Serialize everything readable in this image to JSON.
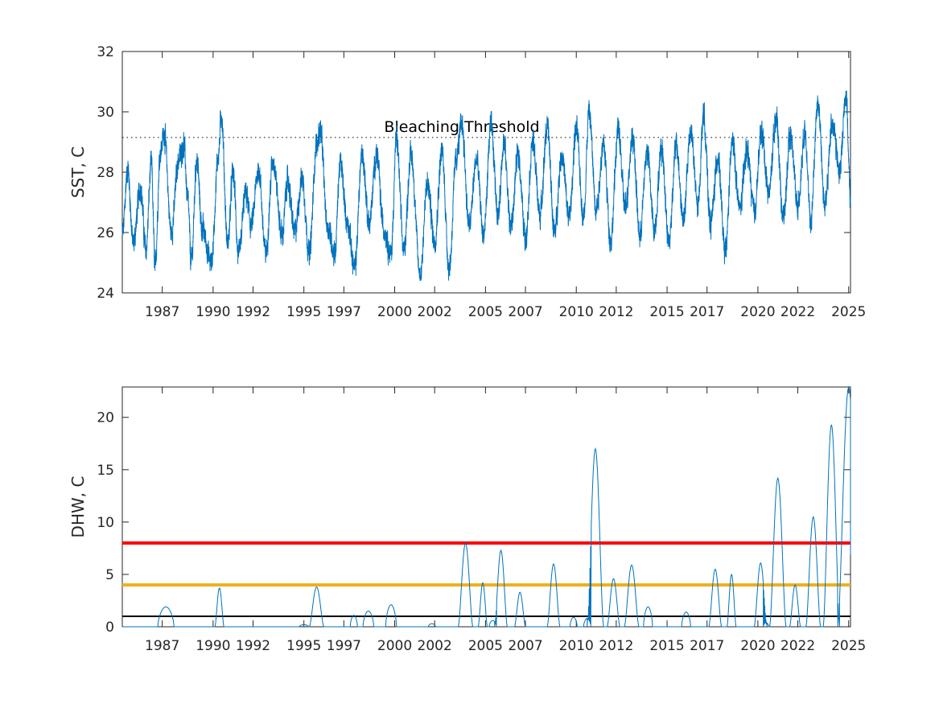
{
  "chart_data": [
    {
      "type": "line",
      "title": "",
      "xlabel": "",
      "ylabel": "SST, C",
      "ylim": [
        24,
        32
      ],
      "yticks": [
        24,
        26,
        28,
        30,
        32
      ],
      "xlim": [
        1985.0,
        2025.1
      ],
      "xticks": [
        "1987",
        "1990",
        "1992",
        "1995",
        "1997",
        "2000",
        "2002",
        "2005",
        "2007",
        "2010",
        "2012",
        "2015",
        "2017",
        "2020",
        "2022",
        "2025"
      ],
      "grid": false,
      "threshold": {
        "label": "Bleaching Threshold",
        "value": 29.15,
        "style": "dotted"
      },
      "series": [
        {
          "color": "#0072bd",
          "points": [
            [
              1985.0,
              25.9
            ],
            [
              1985.3,
              28.1
            ],
            [
              1985.6,
              25.6
            ],
            [
              1986.0,
              27.5
            ],
            [
              1986.3,
              25.4
            ],
            [
              1986.6,
              28.3
            ],
            [
              1986.8,
              24.9
            ],
            [
              1987.1,
              28.7
            ],
            [
              1987.3,
              29.3
            ],
            [
              1987.7,
              26.0
            ],
            [
              1988.1,
              28.4
            ],
            [
              1988.4,
              28.9
            ],
            [
              1988.6,
              27.1
            ],
            [
              1988.8,
              25.0
            ],
            [
              1989.1,
              28.4
            ],
            [
              1989.4,
              26.1
            ],
            [
              1989.9,
              25.0
            ],
            [
              1990.3,
              28.6
            ],
            [
              1990.45,
              29.9
            ],
            [
              1990.8,
              25.6
            ],
            [
              1991.1,
              28.0
            ],
            [
              1991.4,
              25.2
            ],
            [
              1991.8,
              27.3
            ],
            [
              1992.1,
              26.2
            ],
            [
              1992.5,
              28.1
            ],
            [
              1992.9,
              25.3
            ],
            [
              1993.3,
              28.4
            ],
            [
              1993.8,
              25.9
            ],
            [
              1994.1,
              27.7
            ],
            [
              1994.5,
              26.0
            ],
            [
              1994.9,
              27.8
            ],
            [
              1995.3,
              25.3
            ],
            [
              1995.7,
              28.9
            ],
            [
              1995.9,
              29.4
            ],
            [
              1996.3,
              26.2
            ],
            [
              1996.7,
              25.3
            ],
            [
              1997.0,
              28.3
            ],
            [
              1997.4,
              26.3
            ],
            [
              1997.8,
              24.8
            ],
            [
              1998.2,
              28.6
            ],
            [
              1998.6,
              26.3
            ],
            [
              1999.0,
              28.6
            ],
            [
              1999.4,
              26.1
            ],
            [
              1999.8,
              25.3
            ],
            [
              2000.1,
              29.1
            ],
            [
              2000.5,
              25.4
            ],
            [
              2000.9,
              28.6
            ],
            [
              2001.4,
              24.6
            ],
            [
              2001.8,
              27.6
            ],
            [
              2002.2,
              25.7
            ],
            [
              2002.6,
              28.7
            ],
            [
              2003.0,
              24.8
            ],
            [
              2003.4,
              28.5
            ],
            [
              2003.7,
              29.6
            ],
            [
              2004.1,
              26.2
            ],
            [
              2004.5,
              28.4
            ],
            [
              2004.9,
              25.9
            ],
            [
              2005.3,
              29.5
            ],
            [
              2005.7,
              26.6
            ],
            [
              2006.0,
              29.0
            ],
            [
              2006.4,
              26.2
            ],
            [
              2006.8,
              28.6
            ],
            [
              2007.2,
              25.8
            ],
            [
              2007.6,
              29.0
            ],
            [
              2008.0,
              26.6
            ],
            [
              2008.4,
              29.5
            ],
            [
              2008.8,
              26.0
            ],
            [
              2009.2,
              28.6
            ],
            [
              2009.6,
              26.5
            ],
            [
              2010.0,
              29.4
            ],
            [
              2010.4,
              26.5
            ],
            [
              2010.7,
              30.0
            ],
            [
              2011.1,
              26.8
            ],
            [
              2011.5,
              28.9
            ],
            [
              2011.9,
              25.7
            ],
            [
              2012.3,
              29.4
            ],
            [
              2012.7,
              26.8
            ],
            [
              2013.1,
              29.2
            ],
            [
              2013.5,
              25.9
            ],
            [
              2013.9,
              28.7
            ],
            [
              2014.3,
              26.1
            ],
            [
              2014.7,
              28.8
            ],
            [
              2015.1,
              25.7
            ],
            [
              2015.5,
              28.9
            ],
            [
              2015.9,
              26.4
            ],
            [
              2016.3,
              29.4
            ],
            [
              2016.7,
              26.8
            ],
            [
              2017.0,
              29.9
            ],
            [
              2017.4,
              26.3
            ],
            [
              2017.8,
              28.5
            ],
            [
              2018.2,
              25.3
            ],
            [
              2018.6,
              29.0
            ],
            [
              2019.0,
              26.8
            ],
            [
              2019.4,
              28.7
            ],
            [
              2019.8,
              26.7
            ],
            [
              2020.2,
              29.3
            ],
            [
              2020.6,
              27.3
            ],
            [
              2021.0,
              29.8
            ],
            [
              2021.4,
              26.5
            ],
            [
              2021.8,
              29.2
            ],
            [
              2022.2,
              26.9
            ],
            [
              2022.6,
              29.4
            ],
            [
              2022.9,
              26.3
            ],
            [
              2023.3,
              30.3
            ],
            [
              2023.7,
              26.9
            ],
            [
              2024.1,
              29.7
            ],
            [
              2024.5,
              28.0
            ],
            [
              2024.85,
              30.6
            ],
            [
              2025.1,
              27.1
            ]
          ]
        }
      ]
    },
    {
      "type": "line",
      "title": "",
      "xlabel": "",
      "ylabel": "DHW, C",
      "ylim": [
        0,
        22.9
      ],
      "yticks": [
        0,
        5,
        10,
        15,
        20
      ],
      "xlim": [
        1985.0,
        2025.1
      ],
      "xticks": [
        "1987",
        "1990",
        "1992",
        "1995",
        "1997",
        "2000",
        "2002",
        "2005",
        "2007",
        "2010",
        "2012",
        "2015",
        "2017",
        "2020",
        "2022",
        "2025"
      ],
      "grid": false,
      "reference_lines": [
        {
          "value": 8,
          "color": "#ff0000"
        },
        {
          "value": 4,
          "color": "#edb120"
        },
        {
          "value": 1,
          "color": "#000000"
        }
      ],
      "series": [
        {
          "color": "#0072bd",
          "events": [
            [
              1987.4,
              1.9,
              0.9
            ],
            [
              1990.35,
              3.7,
              0.5
            ],
            [
              1995.0,
              0.2,
              0.5
            ],
            [
              1995.7,
              3.8,
              0.8
            ],
            [
              1997.75,
              1.1,
              0.4
            ],
            [
              1998.55,
              1.5,
              0.6
            ],
            [
              1999.8,
              2.1,
              0.6
            ],
            [
              2002.05,
              0.3,
              0.4
            ],
            [
              2003.9,
              8.0,
              0.8
            ],
            [
              2004.85,
              4.2,
              0.5
            ],
            [
              2005.4,
              0.6,
              0.4
            ],
            [
              2005.85,
              7.3,
              0.7
            ],
            [
              2006.9,
              3.3,
              0.6
            ],
            [
              2008.75,
              6.0,
              0.7
            ],
            [
              2009.85,
              0.9,
              0.4
            ],
            [
              2010.6,
              0.8,
              0.4
            ],
            [
              2011.05,
              17.0,
              0.9
            ],
            [
              2012.05,
              4.6,
              0.7
            ],
            [
              2013.05,
              5.9,
              0.8
            ],
            [
              2013.95,
              1.9,
              0.5
            ],
            [
              2016.05,
              1.4,
              0.5
            ],
            [
              2017.65,
              5.5,
              0.7
            ],
            [
              2018.55,
              5.0,
              0.5
            ],
            [
              2020.15,
              6.1,
              0.7
            ],
            [
              2020.45,
              0.4,
              0.3
            ],
            [
              2021.1,
              14.2,
              0.9
            ],
            [
              2022.05,
              4.0,
              0.6
            ],
            [
              2023.05,
              10.5,
              0.8
            ],
            [
              2024.05,
              19.3,
              0.9
            ],
            [
              2025.0,
              22.9,
              1.2
            ]
          ]
        }
      ]
    }
  ]
}
